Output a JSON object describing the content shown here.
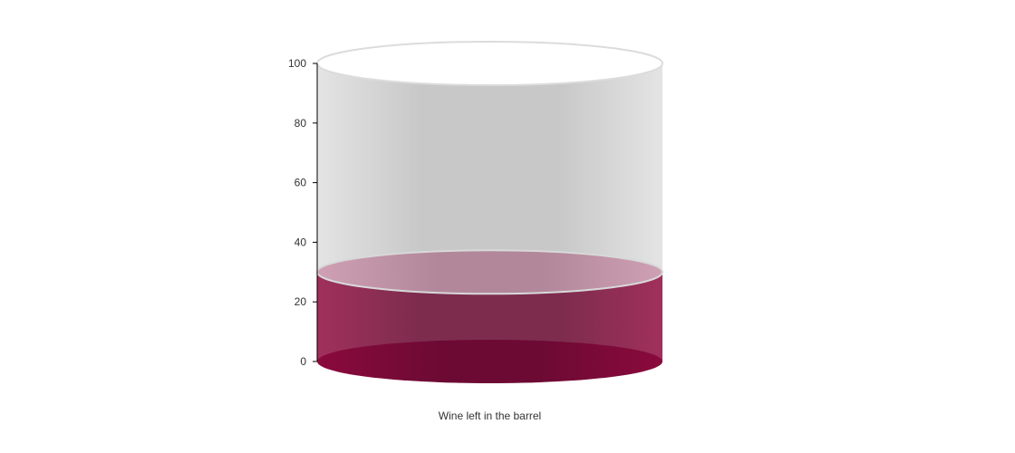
{
  "chart_data": {
    "type": "cylinder-gauge",
    "categories": [
      "Wine left in the barrel"
    ],
    "values": [
      30
    ],
    "ylim": [
      0,
      100
    ],
    "yticks": [
      0,
      20,
      40,
      60,
      80,
      100
    ],
    "title": "",
    "xlabel": "",
    "ylabel": "",
    "grid": false,
    "legend": "none",
    "colors": {
      "fill": "#8a1a4a",
      "fill_dark": "#6d0a34",
      "fill_mid": "#7d2c4e",
      "fill_light": "#a0305c",
      "fill_top": "#c291a6",
      "empty": "#c8c8c8",
      "empty_light": "#e4e4e4",
      "axis": "#000000"
    }
  }
}
